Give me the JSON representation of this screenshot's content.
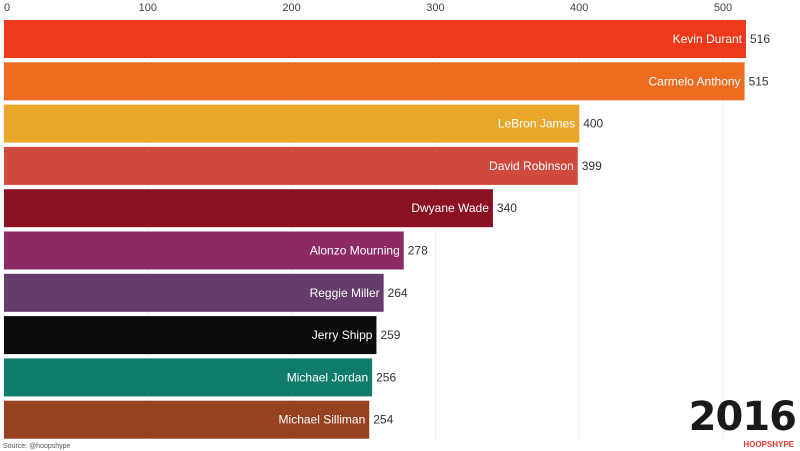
{
  "chart_data": {
    "type": "bar",
    "orientation": "horizontal",
    "categories": [
      "Kevin Durant",
      "Carmelo Anthony",
      "LeBron James",
      "David Robinson",
      "Dwyane Wade",
      "Alonzo Mourning",
      "Reggie Miller",
      "Jerry Shipp",
      "Michael Jordan",
      "Michael Silliman"
    ],
    "values": [
      516,
      515,
      400,
      399,
      340,
      278,
      264,
      259,
      256,
      254
    ],
    "colors": [
      "#ee3a1a",
      "#ee6c20",
      "#e9a72a",
      "#cf4a3c",
      "#8a1223",
      "#8c2b63",
      "#643d6a",
      "#0b0b0b",
      "#0f7c6b",
      "#964120"
    ],
    "xticks": [
      0,
      100,
      200,
      300,
      400,
      500
    ],
    "xlim": [
      0,
      550
    ],
    "grid": true,
    "year": "2016",
    "source": "Source: @hoopshype",
    "logo": "HOOPSHYPE"
  }
}
